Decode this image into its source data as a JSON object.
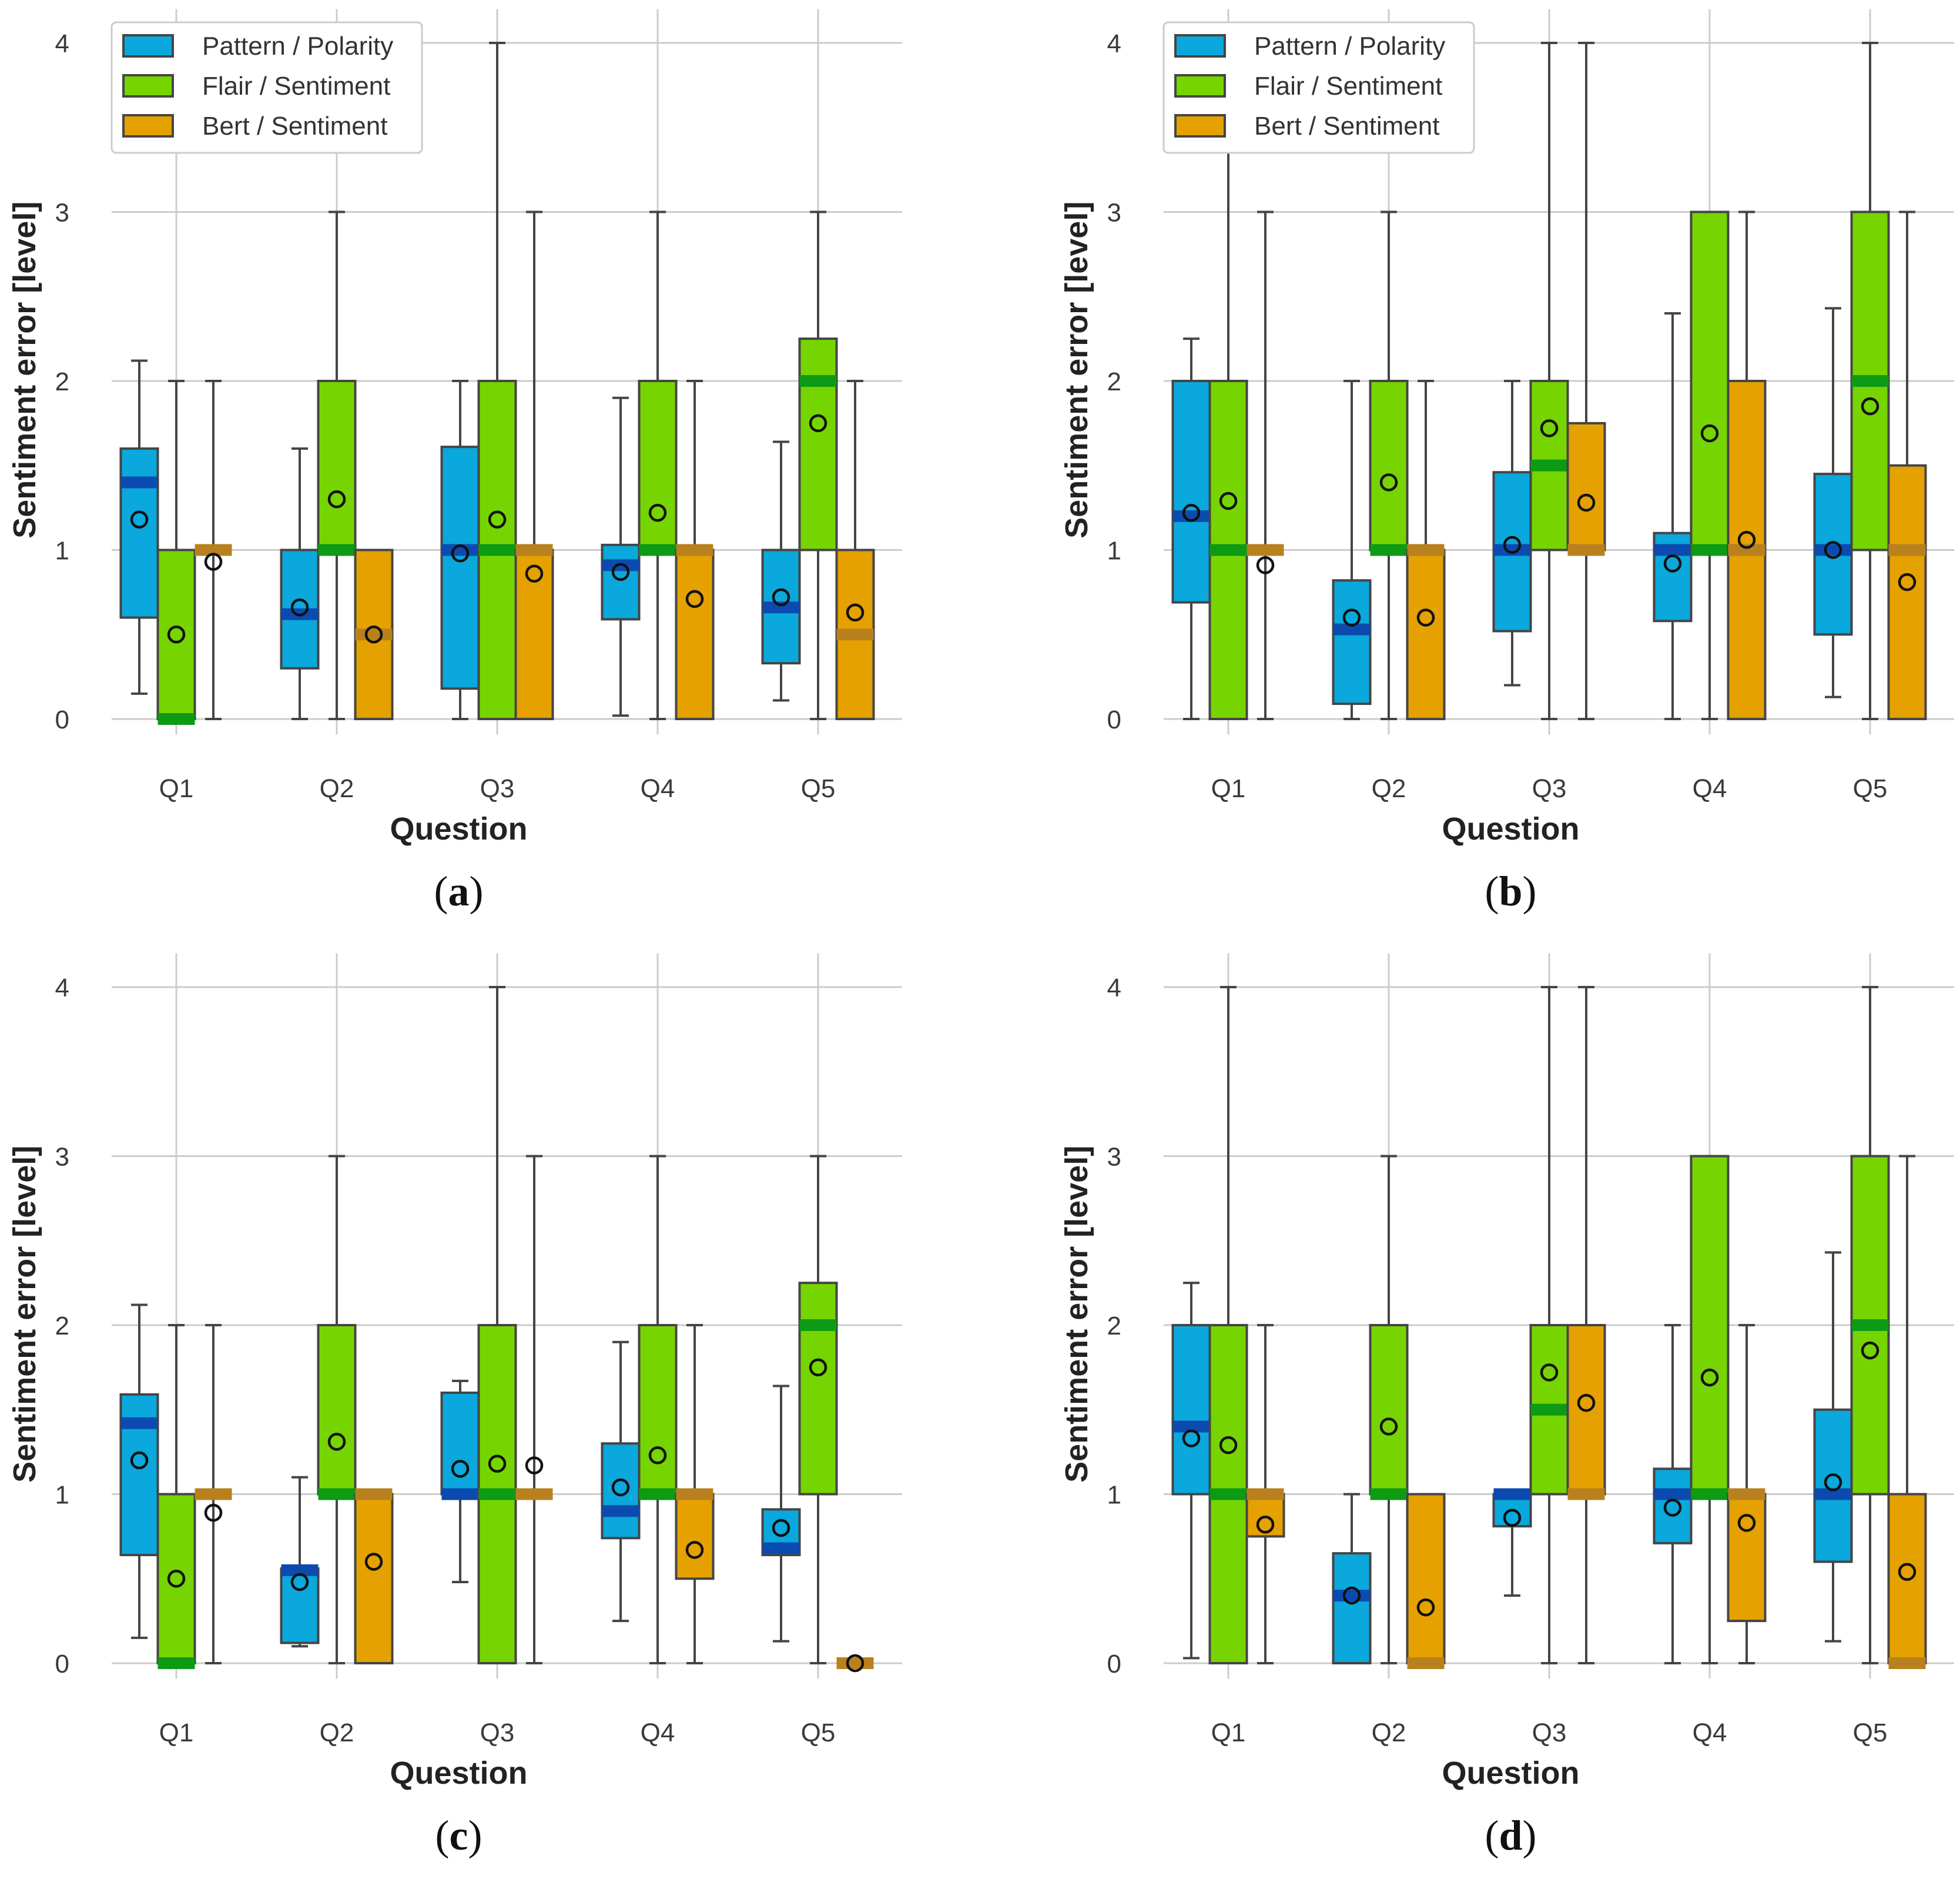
{
  "colors": {
    "pattern": "#0aa8dc",
    "pattern_median": "#0b4bb0",
    "flair": "#76d500",
    "flair_median": "#0d9a14",
    "bert": "#e5a100",
    "bert_median": "#b8811e",
    "stroke": "#454545",
    "grid": "#cccccc"
  },
  "chart_data": [
    {
      "type": "box",
      "panel": "a",
      "xlabel": "Question",
      "ylabel": "Sentiment error [level]",
      "categories": [
        "Q1",
        "Q2",
        "Q3",
        "Q4",
        "Q5"
      ],
      "yticks": [
        0,
        1,
        2,
        3,
        4
      ],
      "ylim": [
        -0.05,
        4.2
      ],
      "legend": [
        "Pattern / Polarity",
        "Flair / Sentiment",
        "Bert / Sentiment"
      ],
      "series": [
        {
          "name": "Pattern / Polarity",
          "color_key": "pattern",
          "boxes": [
            {
              "min": 0.15,
              "q1": 0.6,
              "median": 1.4,
              "q3": 1.6,
              "max": 2.12,
              "mean": 1.18
            },
            {
              "min": 0.0,
              "q1": 0.3,
              "median": 0.62,
              "q3": 1.0,
              "max": 1.6,
              "mean": 0.66
            },
            {
              "min": 0.0,
              "q1": 0.18,
              "median": 1.0,
              "q3": 1.61,
              "max": 2.0,
              "mean": 0.98
            },
            {
              "min": 0.02,
              "q1": 0.59,
              "median": 0.91,
              "q3": 1.03,
              "max": 1.9,
              "mean": 0.87
            },
            {
              "min": 0.11,
              "q1": 0.33,
              "median": 0.66,
              "q3": 1.0,
              "max": 1.64,
              "mean": 0.72
            }
          ]
        },
        {
          "name": "Flair / Sentiment",
          "color_key": "flair",
          "boxes": [
            {
              "min": 0.0,
              "q1": 0.0,
              "median": 0.0,
              "q3": 1.0,
              "max": 2.0,
              "mean": 0.5
            },
            {
              "min": 0.0,
              "q1": 1.0,
              "median": 1.0,
              "q3": 2.0,
              "max": 3.0,
              "mean": 1.3
            },
            {
              "min": 0.0,
              "q1": 0.0,
              "median": 1.0,
              "q3": 2.0,
              "max": 4.0,
              "mean": 1.18
            },
            {
              "min": 0.0,
              "q1": 1.0,
              "median": 1.0,
              "q3": 2.0,
              "max": 3.0,
              "mean": 1.22
            },
            {
              "min": 0.0,
              "q1": 1.0,
              "median": 2.0,
              "q3": 2.25,
              "max": 3.0,
              "mean": 1.75
            }
          ]
        },
        {
          "name": "Bert / Sentiment",
          "color_key": "bert",
          "boxes": [
            {
              "min": 0.0,
              "q1": 1.0,
              "median": 1.0,
              "q3": 1.0,
              "max": 2.0,
              "mean": 0.93
            },
            {
              "min": 0.0,
              "q1": 0.0,
              "median": 0.5,
              "q3": 1.0,
              "max": 1.0,
              "mean": 0.5
            },
            {
              "min": 0.0,
              "q1": 0.0,
              "median": 1.0,
              "q3": 1.0,
              "max": 3.0,
              "mean": 0.86
            },
            {
              "min": 0.0,
              "q1": 0.0,
              "median": 1.0,
              "q3": 1.0,
              "max": 2.0,
              "mean": 0.71
            },
            {
              "min": 0.0,
              "q1": 0.0,
              "median": 0.5,
              "q3": 1.0,
              "max": 2.0,
              "mean": 0.63
            }
          ]
        }
      ]
    },
    {
      "type": "box",
      "panel": "b",
      "xlabel": "Question",
      "ylabel": "Sentiment error [level]",
      "categories": [
        "Q1",
        "Q2",
        "Q3",
        "Q4",
        "Q5"
      ],
      "yticks": [
        0,
        1,
        2,
        3,
        4
      ],
      "ylim": [
        -0.05,
        4.2
      ],
      "legend": [
        "Pattern / Polarity",
        "Flair / Sentiment",
        "Bert / Sentiment"
      ],
      "series": [
        {
          "name": "Pattern / Polarity",
          "color_key": "pattern",
          "boxes": [
            {
              "min": 0.0,
              "q1": 0.69,
              "median": 1.2,
              "q3": 2.0,
              "max": 2.25,
              "mean": 1.22
            },
            {
              "min": 0.0,
              "q1": 0.09,
              "median": 0.53,
              "q3": 0.82,
              "max": 2.0,
              "mean": 0.6
            },
            {
              "min": 0.2,
              "q1": 0.52,
              "median": 1.0,
              "q3": 1.46,
              "max": 2.0,
              "mean": 1.03
            },
            {
              "min": 0.0,
              "q1": 0.58,
              "median": 1.0,
              "q3": 1.1,
              "max": 2.4,
              "mean": 0.92
            },
            {
              "min": 0.13,
              "q1": 0.5,
              "median": 1.0,
              "q3": 1.45,
              "max": 2.43,
              "mean": 1.0
            }
          ]
        },
        {
          "name": "Flair / Sentiment",
          "color_key": "flair",
          "boxes": [
            {
              "min": 0.0,
              "q1": 0.0,
              "median": 1.0,
              "q3": 2.0,
              "max": 4.0,
              "mean": 1.29
            },
            {
              "min": 0.0,
              "q1": 1.0,
              "median": 1.0,
              "q3": 2.0,
              "max": 3.0,
              "mean": 1.4
            },
            {
              "min": 0.0,
              "q1": 1.0,
              "median": 1.5,
              "q3": 2.0,
              "max": 4.0,
              "mean": 1.72
            },
            {
              "min": 0.0,
              "q1": 1.0,
              "median": 1.0,
              "q3": 3.0,
              "max": 3.0,
              "mean": 1.69
            },
            {
              "min": 0.0,
              "q1": 1.0,
              "median": 2.0,
              "q3": 3.0,
              "max": 4.0,
              "mean": 1.85
            }
          ]
        },
        {
          "name": "Bert / Sentiment",
          "color_key": "bert",
          "boxes": [
            {
              "min": 0.0,
              "q1": 1.0,
              "median": 1.0,
              "q3": 1.0,
              "max": 3.0,
              "mean": 0.91
            },
            {
              "min": 0.0,
              "q1": 0.0,
              "median": 1.0,
              "q3": 1.0,
              "max": 2.0,
              "mean": 0.6
            },
            {
              "min": 0.0,
              "q1": 1.0,
              "median": 1.0,
              "q3": 1.75,
              "max": 4.0,
              "mean": 1.28
            },
            {
              "min": 0.0,
              "q1": 0.0,
              "median": 1.0,
              "q3": 2.0,
              "max": 3.0,
              "mean": 1.06
            },
            {
              "min": 0.0,
              "q1": 0.0,
              "median": 1.0,
              "q3": 1.5,
              "max": 3.0,
              "mean": 0.81
            }
          ]
        }
      ]
    },
    {
      "type": "box",
      "panel": "c",
      "xlabel": "Question",
      "ylabel": "Sentiment error [level]",
      "categories": [
        "Q1",
        "Q2",
        "Q3",
        "Q4",
        "Q5"
      ],
      "yticks": [
        0,
        1,
        2,
        3,
        4
      ],
      "ylim": [
        -0.05,
        4.2
      ],
      "legend": [
        "Pattern / Polarity",
        "Flair / Sentiment",
        "Bert / Sentiment"
      ],
      "series": [
        {
          "name": "Pattern / Polarity",
          "color_key": "pattern",
          "boxes": [
            {
              "min": 0.15,
              "q1": 0.64,
              "median": 1.42,
              "q3": 1.59,
              "max": 2.12,
              "mean": 1.2
            },
            {
              "min": 0.1,
              "q1": 0.12,
              "median": 0.55,
              "q3": 0.56,
              "max": 1.1,
              "mean": 0.48
            },
            {
              "min": 0.48,
              "q1": 1.0,
              "median": 1.0,
              "q3": 1.6,
              "max": 1.67,
              "mean": 1.15
            },
            {
              "min": 0.25,
              "q1": 0.74,
              "median": 0.9,
              "q3": 1.3,
              "max": 1.9,
              "mean": 1.04
            },
            {
              "min": 0.13,
              "q1": 0.64,
              "median": 0.68,
              "q3": 0.91,
              "max": 1.64,
              "mean": 0.8
            }
          ]
        },
        {
          "name": "Flair / Sentiment",
          "color_key": "flair",
          "boxes": [
            {
              "min": 0.0,
              "q1": 0.0,
              "median": 0.0,
              "q3": 1.0,
              "max": 2.0,
              "mean": 0.5
            },
            {
              "min": 0.0,
              "q1": 1.0,
              "median": 1.0,
              "q3": 2.0,
              "max": 3.0,
              "mean": 1.31
            },
            {
              "min": 0.0,
              "q1": 0.0,
              "median": 1.0,
              "q3": 2.0,
              "max": 4.0,
              "mean": 1.18
            },
            {
              "min": 0.0,
              "q1": 1.0,
              "median": 1.0,
              "q3": 2.0,
              "max": 3.0,
              "mean": 1.23
            },
            {
              "min": 0.0,
              "q1": 1.0,
              "median": 2.0,
              "q3": 2.25,
              "max": 3.0,
              "mean": 1.75
            }
          ]
        },
        {
          "name": "Bert / Sentiment",
          "color_key": "bert",
          "boxes": [
            {
              "min": 0.0,
              "q1": 1.0,
              "median": 1.0,
              "q3": 1.0,
              "max": 2.0,
              "mean": 0.89
            },
            {
              "min": 0.0,
              "q1": 0.0,
              "median": 1.0,
              "q3": 1.0,
              "max": 1.0,
              "mean": 0.6
            },
            {
              "min": 0.0,
              "q1": 1.0,
              "median": 1.0,
              "q3": 1.0,
              "max": 3.0,
              "mean": 1.17
            },
            {
              "min": 0.0,
              "q1": 0.5,
              "median": 1.0,
              "q3": 1.0,
              "max": 2.0,
              "mean": 0.67
            },
            {
              "min": 0.0,
              "q1": 0.0,
              "median": 0.0,
              "q3": 0.0,
              "max": 0.0,
              "mean": 0.0
            }
          ]
        }
      ]
    },
    {
      "type": "box",
      "panel": "d",
      "xlabel": "Question",
      "ylabel": "Sentiment error [level]",
      "categories": [
        "Q1",
        "Q2",
        "Q3",
        "Q4",
        "Q5"
      ],
      "yticks": [
        0,
        1,
        2,
        3,
        4
      ],
      "ylim": [
        -0.05,
        4.2
      ],
      "legend": [
        "Pattern / Polarity",
        "Flair / Sentiment",
        "Bert / Sentiment"
      ],
      "series": [
        {
          "name": "Pattern / Polarity",
          "color_key": "pattern",
          "boxes": [
            {
              "min": 0.03,
              "q1": 1.0,
              "median": 1.4,
              "q3": 2.0,
              "max": 2.25,
              "mean": 1.33
            },
            {
              "min": 0.0,
              "q1": 0.0,
              "median": 0.4,
              "q3": 0.65,
              "max": 1.0,
              "mean": 0.4
            },
            {
              "min": 0.4,
              "q1": 0.81,
              "median": 1.0,
              "q3": 1.0,
              "max": 1.0,
              "mean": 0.86
            },
            {
              "min": 0.0,
              "q1": 0.71,
              "median": 1.0,
              "q3": 1.15,
              "max": 2.0,
              "mean": 0.92
            },
            {
              "min": 0.13,
              "q1": 0.6,
              "median": 1.0,
              "q3": 1.5,
              "max": 2.43,
              "mean": 1.07
            }
          ]
        },
        {
          "name": "Flair / Sentiment",
          "color_key": "flair",
          "boxes": [
            {
              "min": 0.0,
              "q1": 0.0,
              "median": 1.0,
              "q3": 2.0,
              "max": 4.0,
              "mean": 1.29
            },
            {
              "min": 0.0,
              "q1": 1.0,
              "median": 1.0,
              "q3": 2.0,
              "max": 3.0,
              "mean": 1.4
            },
            {
              "min": 0.0,
              "q1": 1.0,
              "median": 1.5,
              "q3": 2.0,
              "max": 4.0,
              "mean": 1.72
            },
            {
              "min": 0.0,
              "q1": 1.0,
              "median": 1.0,
              "q3": 3.0,
              "max": 3.0,
              "mean": 1.69
            },
            {
              "min": 0.0,
              "q1": 1.0,
              "median": 2.0,
              "q3": 3.0,
              "max": 4.0,
              "mean": 1.85
            }
          ]
        },
        {
          "name": "Bert / Sentiment",
          "color_key": "bert",
          "boxes": [
            {
              "min": 0.0,
              "q1": 0.75,
              "median": 1.0,
              "q3": 1.0,
              "max": 2.0,
              "mean": 0.82
            },
            {
              "min": 0.0,
              "q1": 0.0,
              "median": 0.0,
              "q3": 1.0,
              "max": 1.0,
              "mean": 0.33
            },
            {
              "min": 0.0,
              "q1": 1.0,
              "median": 1.0,
              "q3": 2.0,
              "max": 4.0,
              "mean": 1.54
            },
            {
              "min": 0.0,
              "q1": 0.25,
              "median": 1.0,
              "q3": 1.0,
              "max": 2.0,
              "mean": 0.83
            },
            {
              "min": 0.0,
              "q1": 0.0,
              "median": 0.0,
              "q3": 1.0,
              "max": 3.0,
              "mean": 0.54
            }
          ]
        }
      ]
    }
  ]
}
